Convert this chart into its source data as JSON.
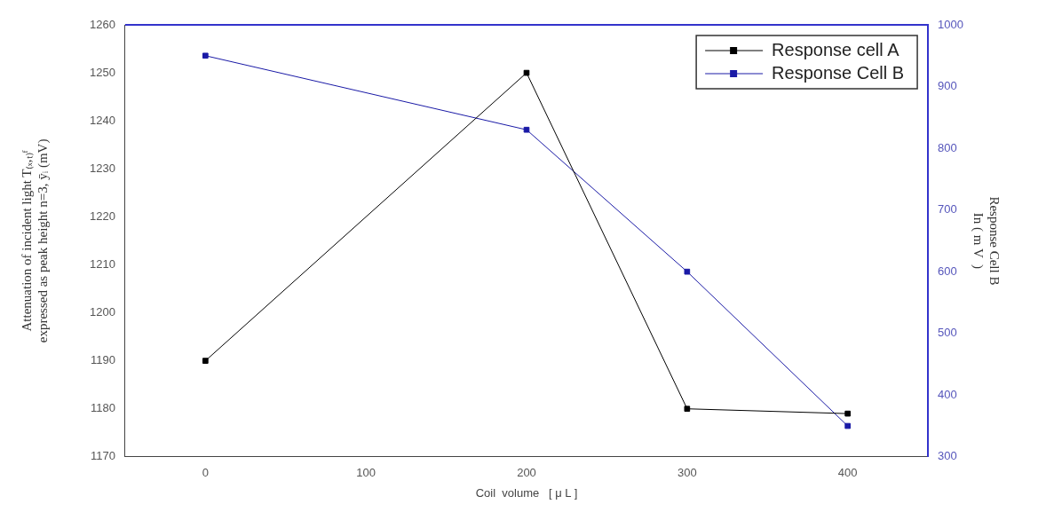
{
  "chart_data": {
    "type": "line",
    "xlabel": "Coil  volume   [ μ L ]",
    "ylabel": [
      "Attenuation of incident light T₍ₓ,ₜ₎ᶠ",
      "expressed as peak height n=3, ȳᵢ (mV)"
    ],
    "y2label": [
      "Response Cell B",
      "In ( m V  )"
    ],
    "x": [
      0,
      200,
      300,
      400
    ],
    "series": [
      {
        "name": "Response cell A",
        "color": "#000000",
        "values": [
          1190,
          1250,
          1180,
          1179
        ]
      },
      {
        "name": "Response Cell B",
        "color": "#1a1aa6",
        "values": [
          950,
          830,
          600,
          350
        ],
        "axis": "y2"
      }
    ],
    "xlim": [
      -50,
      450
    ],
    "xticks": [
      0,
      100,
      200,
      300,
      400
    ],
    "ylim": [
      1170,
      1260
    ],
    "yticks": [
      1170,
      1180,
      1190,
      1200,
      1210,
      1220,
      1230,
      1240,
      1250,
      1260
    ],
    "y2lim": [
      300,
      1000
    ],
    "y2ticks": [
      300,
      400,
      500,
      600,
      700,
      800,
      900,
      1000
    ],
    "legend": "top right",
    "marker": "square",
    "line_style": "solid",
    "grid": false
  }
}
